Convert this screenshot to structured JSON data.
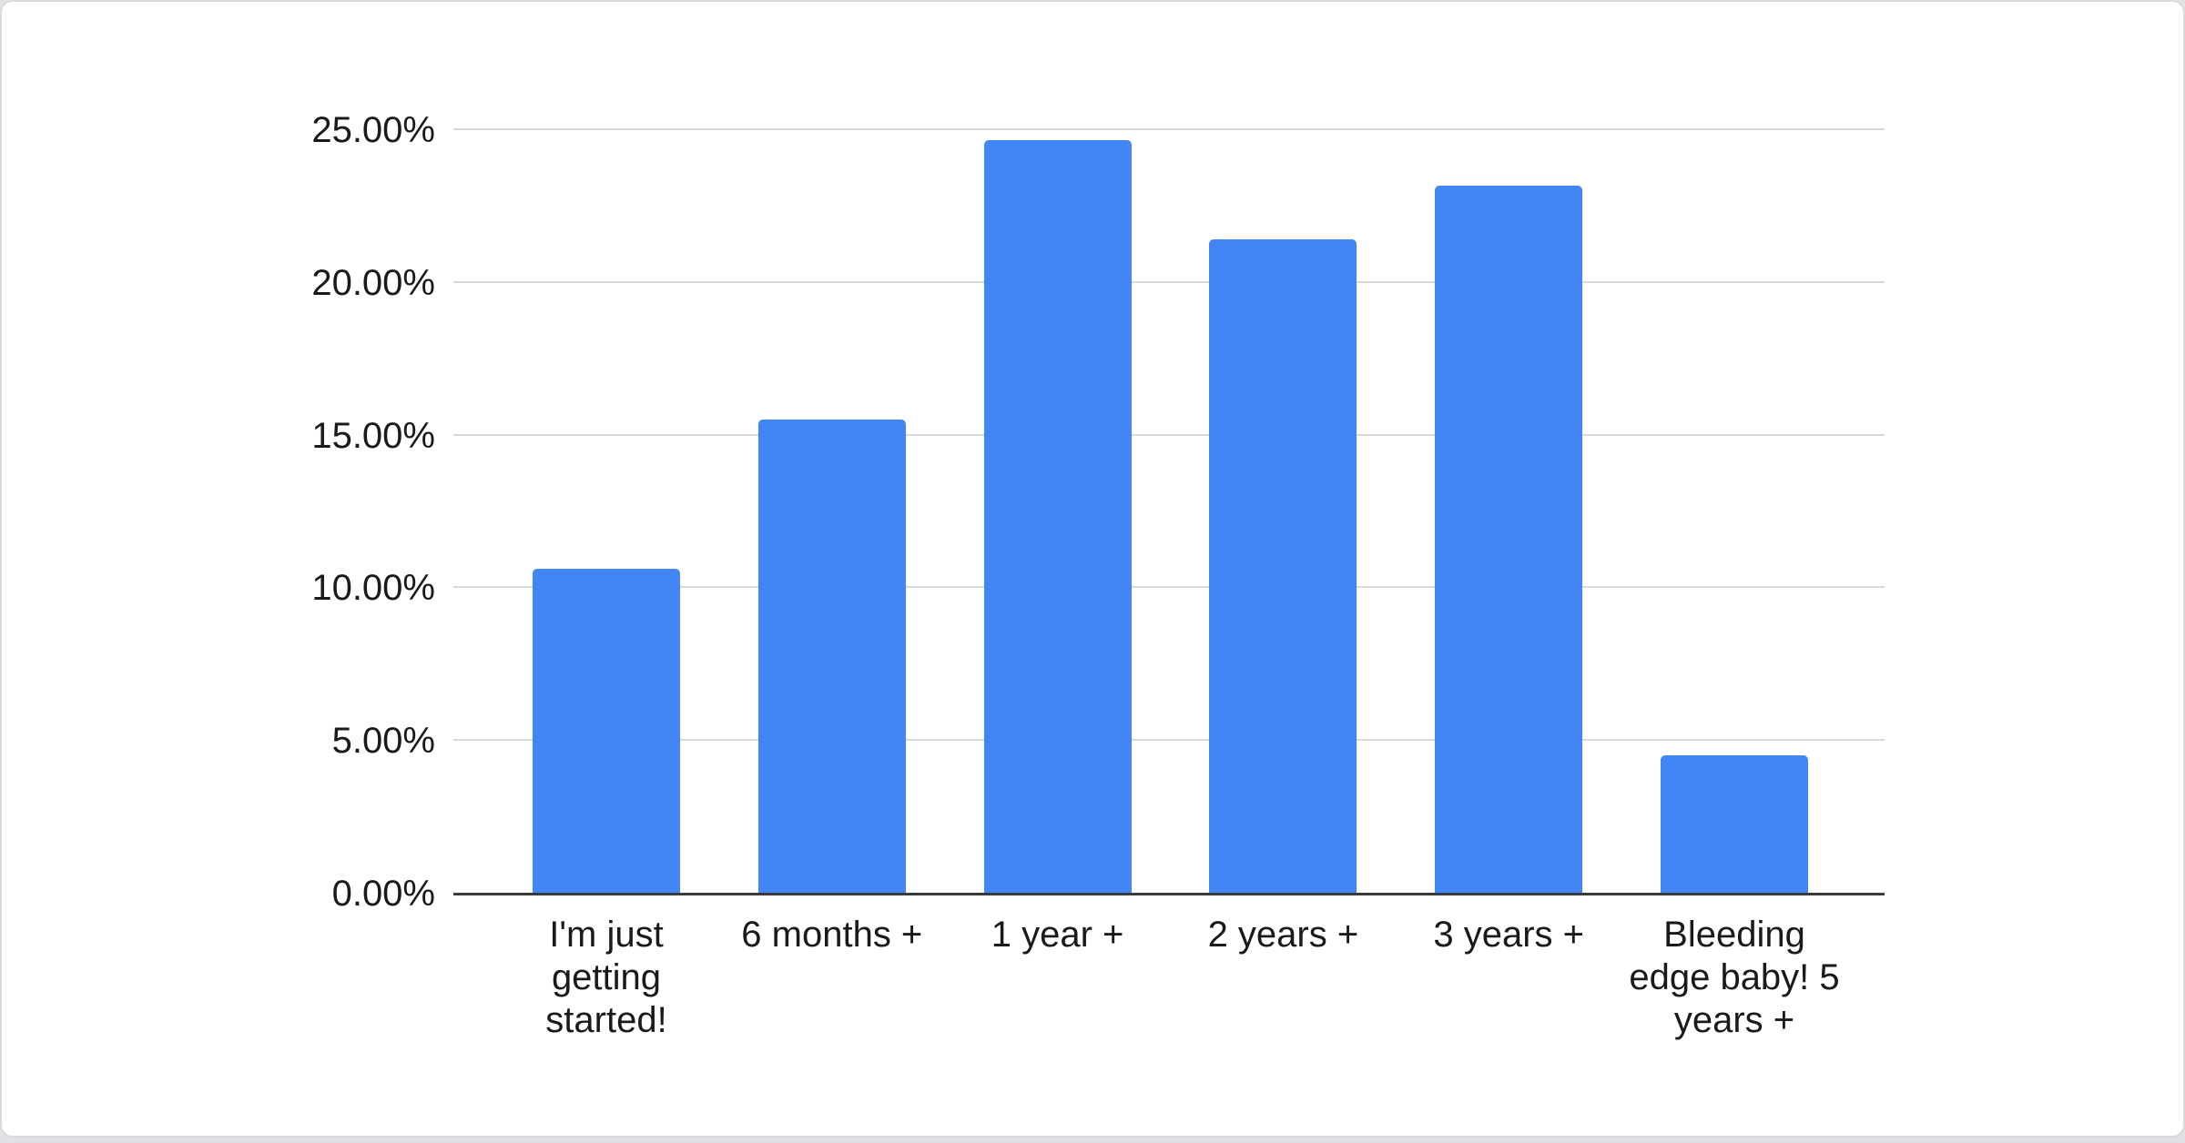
{
  "chart_data": {
    "type": "bar",
    "title": "",
    "xlabel": "",
    "ylabel": "",
    "categories": [
      "I'm just getting started!",
      "6 months +",
      "1 year +",
      "2 years +",
      "3 years +",
      "Bleeding edge baby! 5 years +"
    ],
    "values": [
      10.6,
      15.5,
      24.65,
      21.4,
      23.15,
      4.5
    ],
    "value_unit": "percent",
    "ylim": [
      0,
      25
    ],
    "y_ticks": [
      "0.00%",
      "5.00%",
      "10.00%",
      "15.00%",
      "20.00%",
      "25.00%"
    ],
    "y_tick_values": [
      0,
      5,
      10,
      15,
      20,
      25
    ],
    "grid": true,
    "legend_position": "none"
  },
  "colors": {
    "bar": "#4285f4",
    "gridline": "#d9d9d9",
    "axis_line": "#3a3a3a",
    "axis_text": "#1a1a1a",
    "card_background": "#ffffff",
    "card_border": "#d8dade",
    "page_background": "#dfe1e4"
  }
}
